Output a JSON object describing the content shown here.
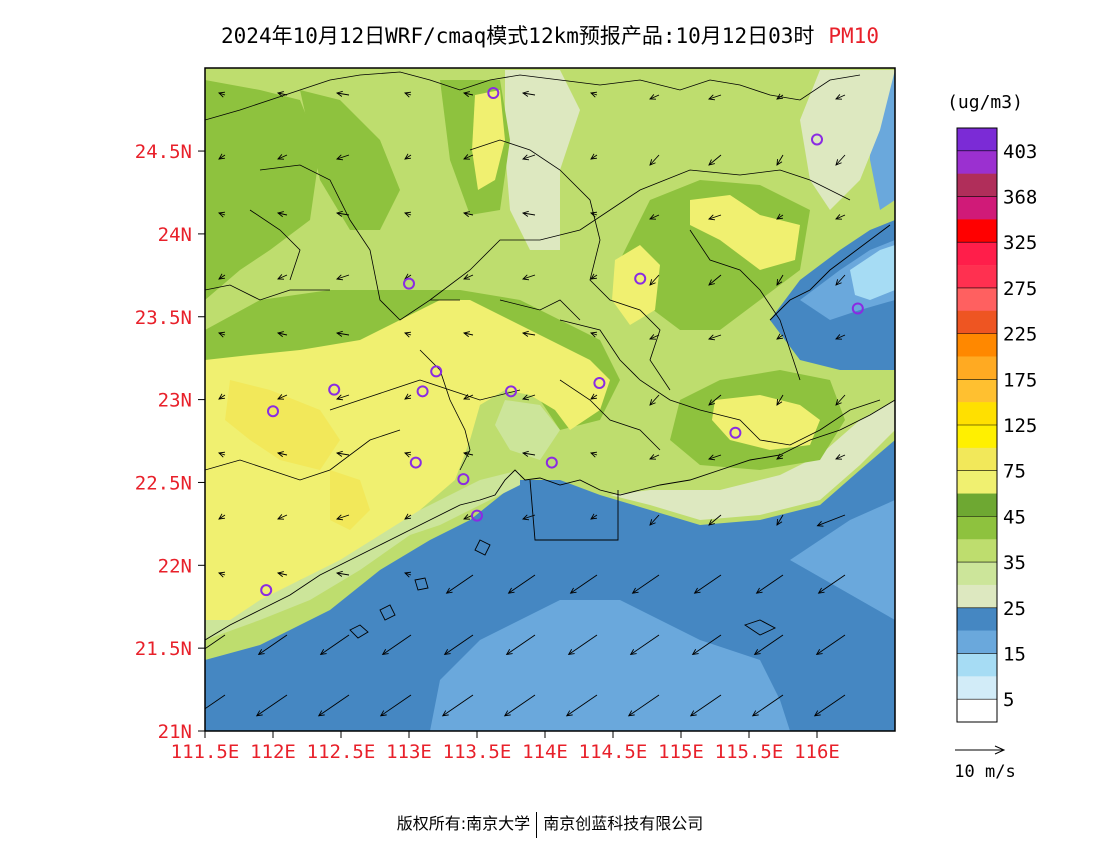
{
  "title": {
    "main": "2024年10月12日WRF/cmaq模式12km预报产品:10月12日03时",
    "pollutant": "PM10"
  },
  "axes": {
    "lat_labels": [
      "24.5N",
      "24N",
      "23.5N",
      "23N",
      "22.5N",
      "22N",
      "21.5N",
      "21N"
    ],
    "lon_labels": [
      "111.5E",
      "112E",
      "112.5E",
      "113E",
      "113.5E",
      "114E",
      "114.5E",
      "115E",
      "115.5E",
      "116E"
    ],
    "label_color": "#e8202a"
  },
  "legend": {
    "unit": "(ug/m3)",
    "labels": [
      "403",
      "368",
      "325",
      "275",
      "225",
      "175",
      "125",
      "75",
      "45",
      "35",
      "25",
      "15",
      "5"
    ],
    "colors": [
      "#7b2bd6",
      "#9b30d0",
      "#b02e5a",
      "#d01a78",
      "#ff0000",
      "#ff1e4a",
      "#ff3050",
      "#ff6060",
      "#ee5522",
      "#ff8800",
      "#ffaa22",
      "#ffc030",
      "#ffe000",
      "#fff000",
      "#f2e85a",
      "#f0f070",
      "#6ea832",
      "#8ec23e",
      "#bedd6e",
      "#cce59a",
      "#dde8c0",
      "#4587c2",
      "#6aa8dc",
      "#a6dcf4",
      "#d2ecf8",
      "#ffffff"
    ]
  },
  "wind": {
    "reference_label": "10 m/s"
  },
  "footer": {
    "left": "版权所有:南京大学",
    "right": "南京创蓝科技有限公司"
  },
  "stations": [
    {
      "name": "station",
      "lon": 113.62,
      "lat": 24.85
    },
    {
      "name": "station",
      "lon": 116.0,
      "lat": 24.57
    },
    {
      "name": "station",
      "lon": 113.0,
      "lat": 23.7
    },
    {
      "name": "station",
      "lon": 114.7,
      "lat": 23.73
    },
    {
      "name": "station",
      "lon": 116.3,
      "lat": 23.55
    },
    {
      "name": "station",
      "lon": 113.2,
      "lat": 23.17
    },
    {
      "name": "station",
      "lon": 112.45,
      "lat": 23.06
    },
    {
      "name": "station",
      "lon": 113.1,
      "lat": 23.05
    },
    {
      "name": "station",
      "lon": 113.75,
      "lat": 23.05
    },
    {
      "name": "station",
      "lon": 114.4,
      "lat": 23.1
    },
    {
      "name": "station",
      "lon": 112.0,
      "lat": 22.93
    },
    {
      "name": "station",
      "lon": 115.4,
      "lat": 22.8
    },
    {
      "name": "station",
      "lon": 113.05,
      "lat": 22.62
    },
    {
      "name": "station",
      "lon": 114.05,
      "lat": 22.62
    },
    {
      "name": "station",
      "lon": 113.4,
      "lat": 22.52
    },
    {
      "name": "station",
      "lon": 113.5,
      "lat": 22.3
    },
    {
      "name": "station",
      "lon": 111.95,
      "lat": 21.85
    }
  ]
}
